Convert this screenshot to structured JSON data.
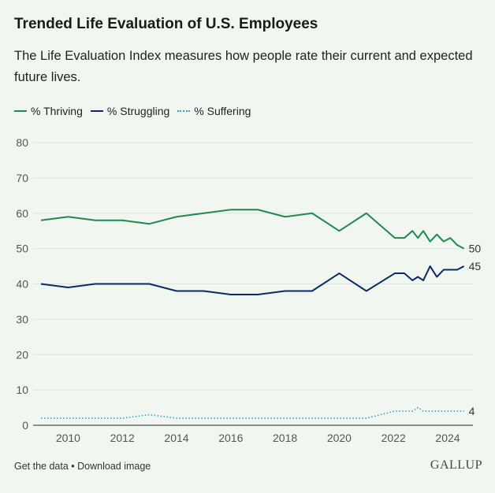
{
  "chart_data": {
    "type": "line",
    "title": "Trended Life Evaluation of U.S. Employees",
    "subtitle": "The Life Evaluation Index measures how people rate their current and expected future lives.",
    "xlabel": "",
    "ylabel": "",
    "xlim": [
      2009,
      2024.9
    ],
    "ylim": [
      0,
      80
    ],
    "yticks": [
      0,
      10,
      20,
      30,
      40,
      50,
      60,
      70,
      80
    ],
    "xticks": [
      2010,
      2012,
      2014,
      2016,
      2018,
      2020,
      2022,
      2024
    ],
    "grid": true,
    "legend_position": "top-left",
    "series": [
      {
        "name": "% Thriving",
        "color": "#1f8a4e",
        "style": "solid",
        "end_label": "50",
        "x": [
          2009,
          2010,
          2011,
          2012,
          2013,
          2014,
          2015,
          2016,
          2017,
          2018,
          2019,
          2020,
          2021,
          2022.05,
          2022.4,
          2022.7,
          2022.9,
          2023.1,
          2023.35,
          2023.6,
          2023.85,
          2024.1,
          2024.35,
          2024.6
        ],
        "y": [
          58,
          59,
          58,
          58,
          57,
          59,
          60,
          61,
          61,
          59,
          60,
          55,
          60,
          53,
          53,
          55,
          53,
          55,
          52,
          54,
          52,
          53,
          51,
          50
        ]
      },
      {
        "name": "% Struggling",
        "color": "#0b2a6a",
        "style": "solid",
        "end_label": "45",
        "x": [
          2009,
          2010,
          2011,
          2012,
          2013,
          2014,
          2015,
          2016,
          2017,
          2018,
          2019,
          2020,
          2021,
          2022.05,
          2022.4,
          2022.7,
          2022.9,
          2023.1,
          2023.35,
          2023.6,
          2023.85,
          2024.1,
          2024.35,
          2024.6
        ],
        "y": [
          40,
          39,
          40,
          40,
          40,
          38,
          38,
          37,
          37,
          38,
          38,
          43,
          38,
          43,
          43,
          41,
          42,
          41,
          45,
          42,
          44,
          44,
          44,
          45
        ]
      },
      {
        "name": "% Suffering",
        "color": "#3a9ccb",
        "style": "dotted",
        "end_label": "4",
        "x": [
          2009,
          2010,
          2011,
          2012,
          2013,
          2014,
          2015,
          2016,
          2017,
          2018,
          2019,
          2020,
          2021,
          2022.05,
          2022.4,
          2022.7,
          2022.9,
          2023.1,
          2023.35,
          2023.6,
          2023.85,
          2024.1,
          2024.35,
          2024.6
        ],
        "y": [
          2,
          2,
          2,
          2,
          3,
          2,
          2,
          2,
          2,
          2,
          2,
          2,
          2,
          4,
          4,
          4,
          5,
          4,
          4,
          4,
          4,
          4,
          4,
          4
        ]
      }
    ]
  },
  "footer": {
    "get_data": "Get the data",
    "separator": " • ",
    "download": "Download image"
  },
  "brand": "GALLUP"
}
